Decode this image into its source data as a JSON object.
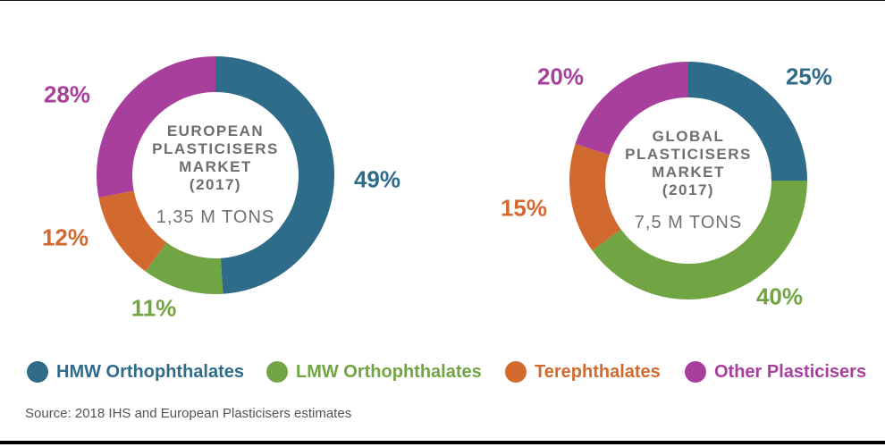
{
  "page": {
    "source": "Source: 2018 IHS and European Plasticisers estimates"
  },
  "colors": {
    "teal": "#2E6C8A",
    "green": "#71A544",
    "orange": "#D2692E",
    "purple": "#A93F9D",
    "center_text": "#6D6E71",
    "source_text": "#545456"
  },
  "legend": {
    "items": [
      {
        "label": "HMW Orthophthalates",
        "color": "#2E6C8A"
      },
      {
        "label": "LMW Orthophthalates",
        "color": "#71A544"
      },
      {
        "label": "Terephthalates",
        "color": "#D2692E"
      },
      {
        "label": "Other Plasticisers",
        "color": "#A93F9D"
      }
    ]
  },
  "chart_data": [
    {
      "type": "pie",
      "donut": true,
      "title": "EUROPEAN PLASTICISERS MARKET (2017)",
      "title_lines": [
        "EUROPEAN",
        "PLASTICISERS",
        "MARKET",
        "(2017)"
      ],
      "center_label": "1,35 M TONS",
      "categories": [
        "HMW Orthophthalates",
        "LMW Orthophthalates",
        "Terephthalates",
        "Other Plasticisers"
      ],
      "values": [
        49,
        11,
        12,
        28
      ],
      "unit": "%",
      "colors": [
        "#2E6C8A",
        "#71A544",
        "#D2692E",
        "#A93F9D"
      ],
      "start_angle_deg": 0,
      "direction": "clockwise",
      "legend_position": "bottom"
    },
    {
      "type": "pie",
      "donut": true,
      "title": "GLOBAL PLASTICISERS MARKET (2017)",
      "title_lines": [
        "GLOBAL",
        "PLASTICISERS",
        "MARKET",
        "(2017)"
      ],
      "center_label": "7,5 M TONS",
      "categories": [
        "HMW Orthophthalates",
        "LMW Orthophthalates",
        "Terephthalates",
        "Other Plasticisers"
      ],
      "values": [
        25,
        40,
        15,
        20
      ],
      "unit": "%",
      "colors": [
        "#2E6C8A",
        "#71A544",
        "#D2692E",
        "#A93F9D"
      ],
      "start_angle_deg": 0,
      "direction": "clockwise",
      "legend_position": "bottom"
    }
  ]
}
